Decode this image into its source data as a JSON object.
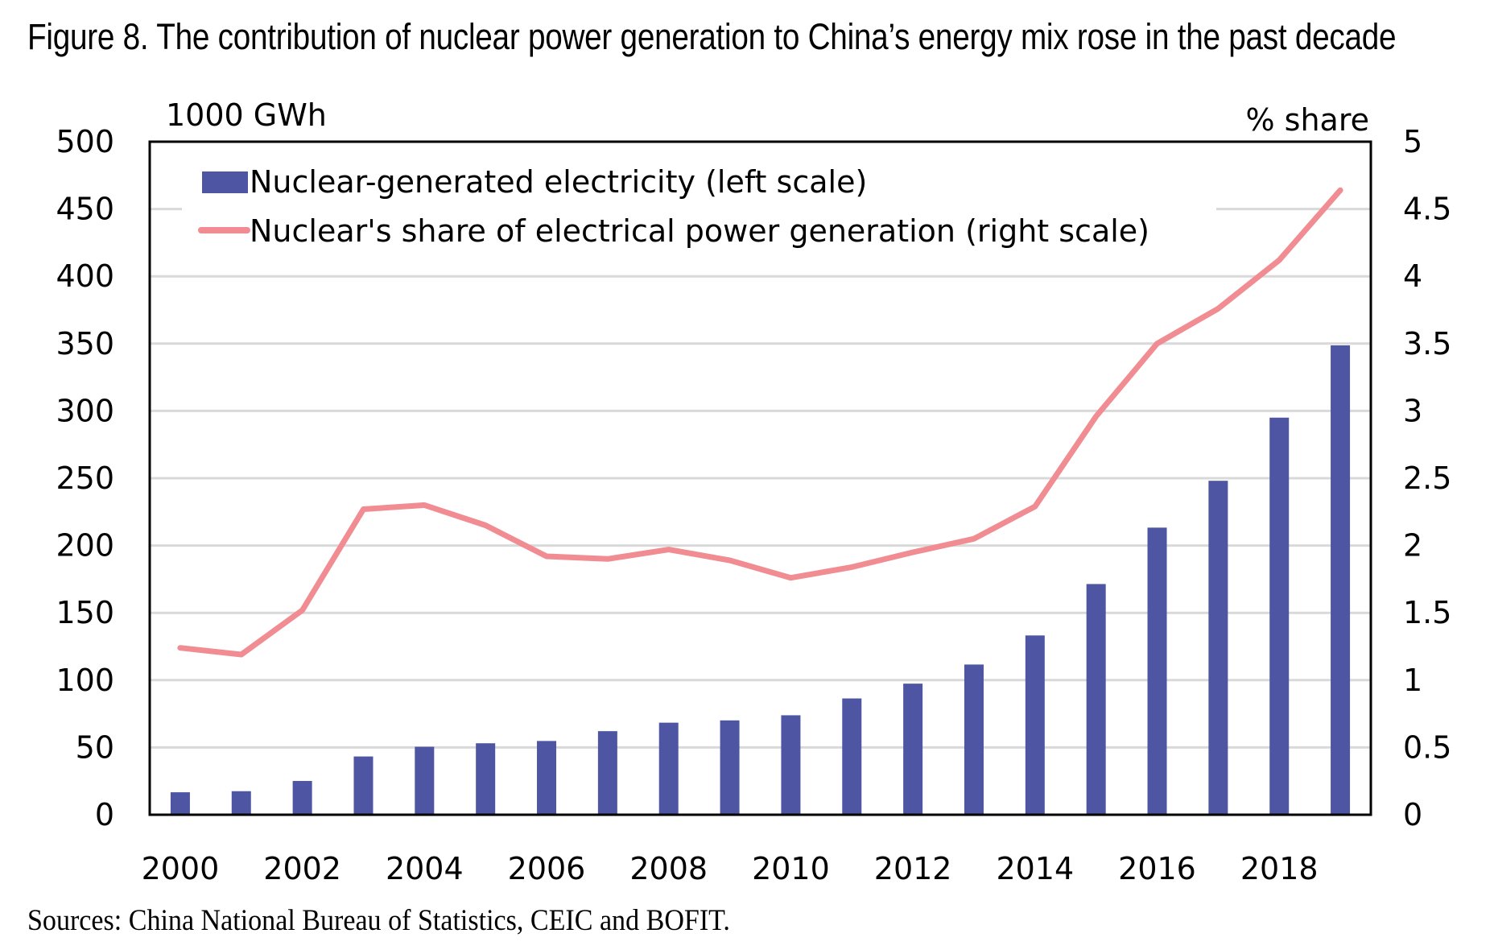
{
  "figure": {
    "title": "Figure 8. The contribution of nuclear power generation to China’s energy mix rose in the past decade",
    "source": "Sources: China National Bureau of Statistics, CEIC and BOFIT."
  },
  "chart_data": {
    "type": "bar+line",
    "title": "Figure 8. The contribution of nuclear power generation to China’s energy mix rose in the past decade",
    "xlabel": "",
    "ylabel_left": "1000 GWh",
    "ylabel_right": "% share",
    "ylim_left": [
      0,
      500
    ],
    "ylim_right": [
      0,
      5
    ],
    "yticks_left": [
      "0",
      "50",
      "100",
      "150",
      "200",
      "250",
      "300",
      "350",
      "400",
      "450",
      "500"
    ],
    "yticks_right": [
      "0",
      "0.5",
      "1",
      "1.5",
      "2",
      "2.5",
      "3",
      "3.5",
      "4",
      "4.5",
      "5"
    ],
    "grid": true,
    "legend_position": "top-left",
    "categories": [
      "2000",
      "2001",
      "2002",
      "2003",
      "2004",
      "2005",
      "2006",
      "2007",
      "2008",
      "2009",
      "2010",
      "2011",
      "2012",
      "2013",
      "2014",
      "2015",
      "2016",
      "2017",
      "2018",
      "2019"
    ],
    "xtick_labels": [
      "2000",
      "2002",
      "2004",
      "2006",
      "2008",
      "2010",
      "2012",
      "2014",
      "2016",
      "2018"
    ],
    "series": [
      {
        "name": "Nuclear-generated electricity (left scale)",
        "type": "bar",
        "axis": "left",
        "color": "#4e56a3",
        "values": [
          16.7,
          17.5,
          25.1,
          43.3,
          50.5,
          53.1,
          54.8,
          62.1,
          68.4,
          70.1,
          73.9,
          86.4,
          97.4,
          111.6,
          133.2,
          171.4,
          213.3,
          248.1,
          295.0,
          348.7
        ]
      },
      {
        "name": "Nuclear's share of electrical power generation (right scale)",
        "type": "line",
        "axis": "right",
        "color": "#f08c92",
        "values": [
          1.24,
          1.19,
          1.52,
          2.27,
          2.3,
          2.15,
          1.92,
          1.9,
          1.97,
          1.89,
          1.76,
          1.84,
          1.95,
          2.05,
          2.29,
          2.96,
          3.5,
          3.76,
          4.12,
          4.64
        ]
      }
    ]
  }
}
